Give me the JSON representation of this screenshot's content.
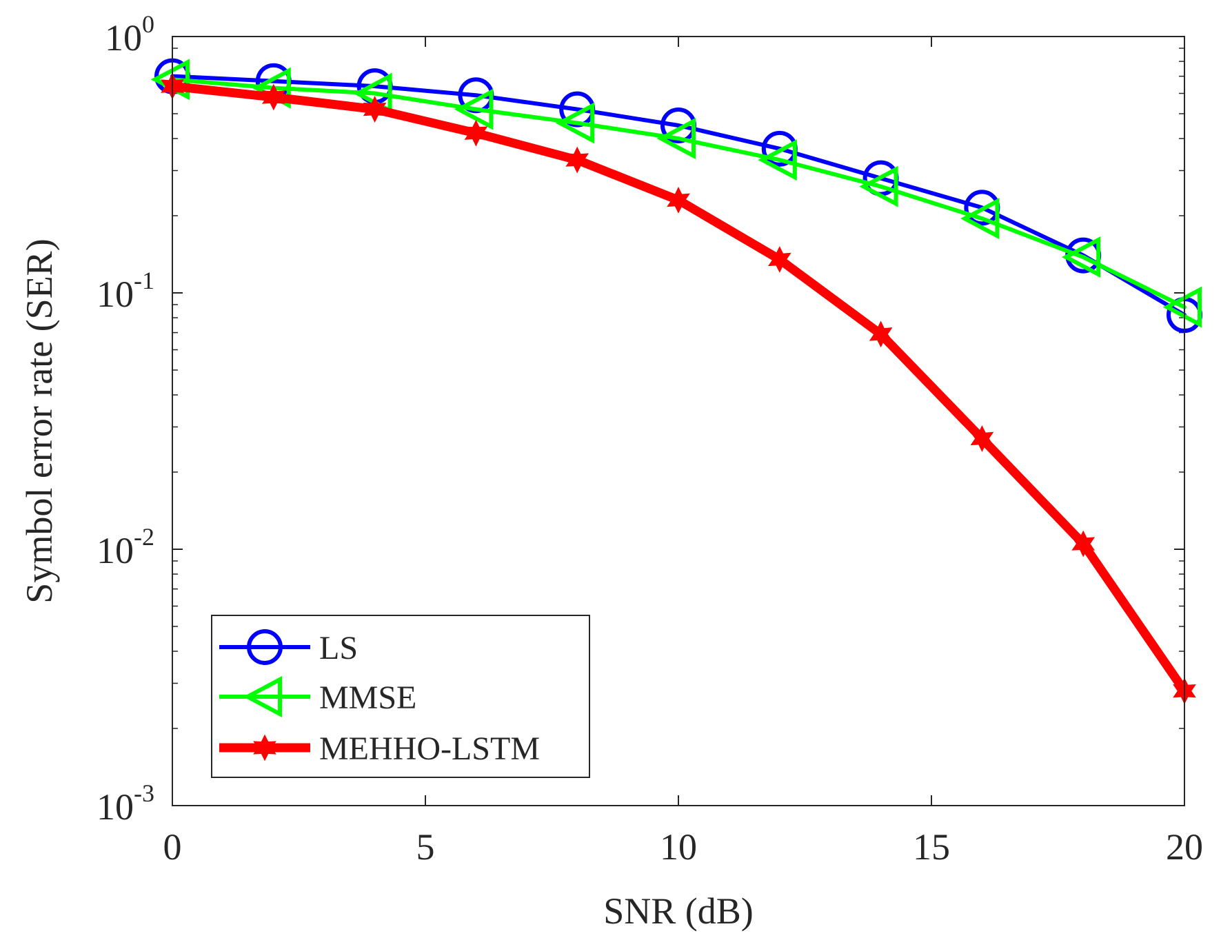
{
  "chart_data": {
    "type": "line",
    "xlabel": "SNR (dB)",
    "ylabel": "Symbol error rate (SER)",
    "xscale": "linear",
    "yscale": "log",
    "xlim": [
      0,
      20
    ],
    "ylim": [
      0.001,
      1
    ],
    "xticks": [
      0,
      5,
      10,
      15,
      20
    ],
    "xtick_labels": [
      "0",
      "5",
      "10",
      "15",
      "20"
    ],
    "yticks": [
      0.001,
      0.01,
      0.1,
      1
    ],
    "ytick_labels": [
      {
        "base": "10",
        "exp": "-3"
      },
      {
        "base": "10",
        "exp": "-2"
      },
      {
        "base": "10",
        "exp": "-1"
      },
      {
        "base": "10",
        "exp": "0"
      }
    ],
    "grid": false,
    "legend_position": "bottom-left",
    "x": [
      0,
      2,
      4,
      6,
      8,
      10,
      12,
      14,
      16,
      18,
      20
    ],
    "series": [
      {
        "name": "LS",
        "color": "#0000ff",
        "marker": "circle",
        "values": [
          0.7,
          0.67,
          0.64,
          0.59,
          0.52,
          0.45,
          0.365,
          0.28,
          0.215,
          0.14,
          0.082
        ]
      },
      {
        "name": "MMSE",
        "color": "#00ff00",
        "marker": "triangle-left",
        "values": [
          0.68,
          0.63,
          0.6,
          0.52,
          0.46,
          0.4,
          0.33,
          0.26,
          0.195,
          0.138,
          0.088
        ]
      },
      {
        "name": "MEHHO-LSTM",
        "color": "#ff0000",
        "marker": "hexagram",
        "values": [
          0.64,
          0.58,
          0.52,
          0.42,
          0.33,
          0.23,
          0.135,
          0.069,
          0.027,
          0.0105,
          0.0028
        ]
      }
    ]
  }
}
